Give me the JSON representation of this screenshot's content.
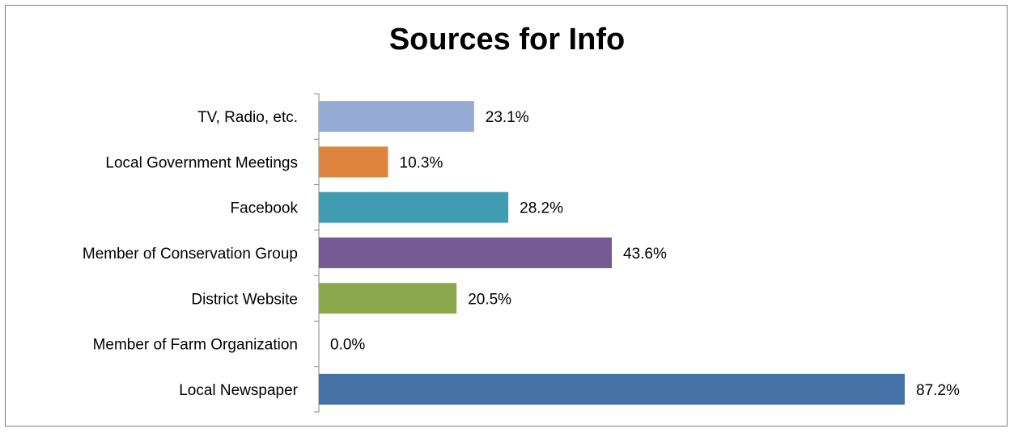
{
  "chart_data": {
    "type": "bar",
    "orientation": "horizontal",
    "title": "Sources for Info",
    "xlabel": "",
    "ylabel": "",
    "xlim": [
      0,
      100
    ],
    "grid": false,
    "legend": "none",
    "value_suffix": "%",
    "categories": [
      "TV, Radio, etc.",
      "Local Government Meetings",
      "Facebook",
      "Member of Conservation Group",
      "District Website",
      "Member of Farm Organization",
      "Local Newspaper"
    ],
    "values": [
      23.1,
      10.3,
      28.2,
      43.6,
      20.5,
      0.0,
      87.2
    ],
    "value_labels": [
      "23.1%",
      "10.3%",
      "28.2%",
      "43.6%",
      "20.5%",
      "0.0%",
      "87.2%"
    ],
    "colors": [
      "#95abd4",
      "#df843f",
      "#419bb1",
      "#765a93",
      "#8ca84c",
      "#95abd4",
      "#4673a7"
    ]
  }
}
